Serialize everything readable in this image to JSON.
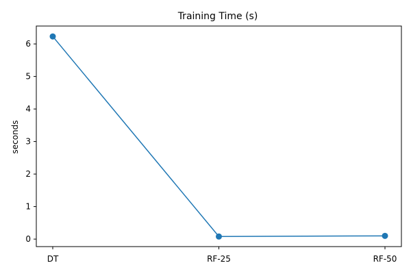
{
  "chart_data": {
    "type": "line",
    "title": "Training Time (s)",
    "xlabel": "",
    "ylabel": "seconds",
    "categories": [
      "DT",
      "RF-25",
      "RF-50"
    ],
    "series": [
      {
        "values": [
          6.23,
          0.08,
          0.1
        ]
      }
    ],
    "ylim": [
      -0.23,
      6.55
    ],
    "yticks": [
      0,
      1,
      2,
      3,
      4,
      5,
      6
    ],
    "grid": false,
    "legend": "none",
    "colors": {
      "series": "#1f77b4",
      "axis": "#000000"
    },
    "markers": "circle"
  }
}
